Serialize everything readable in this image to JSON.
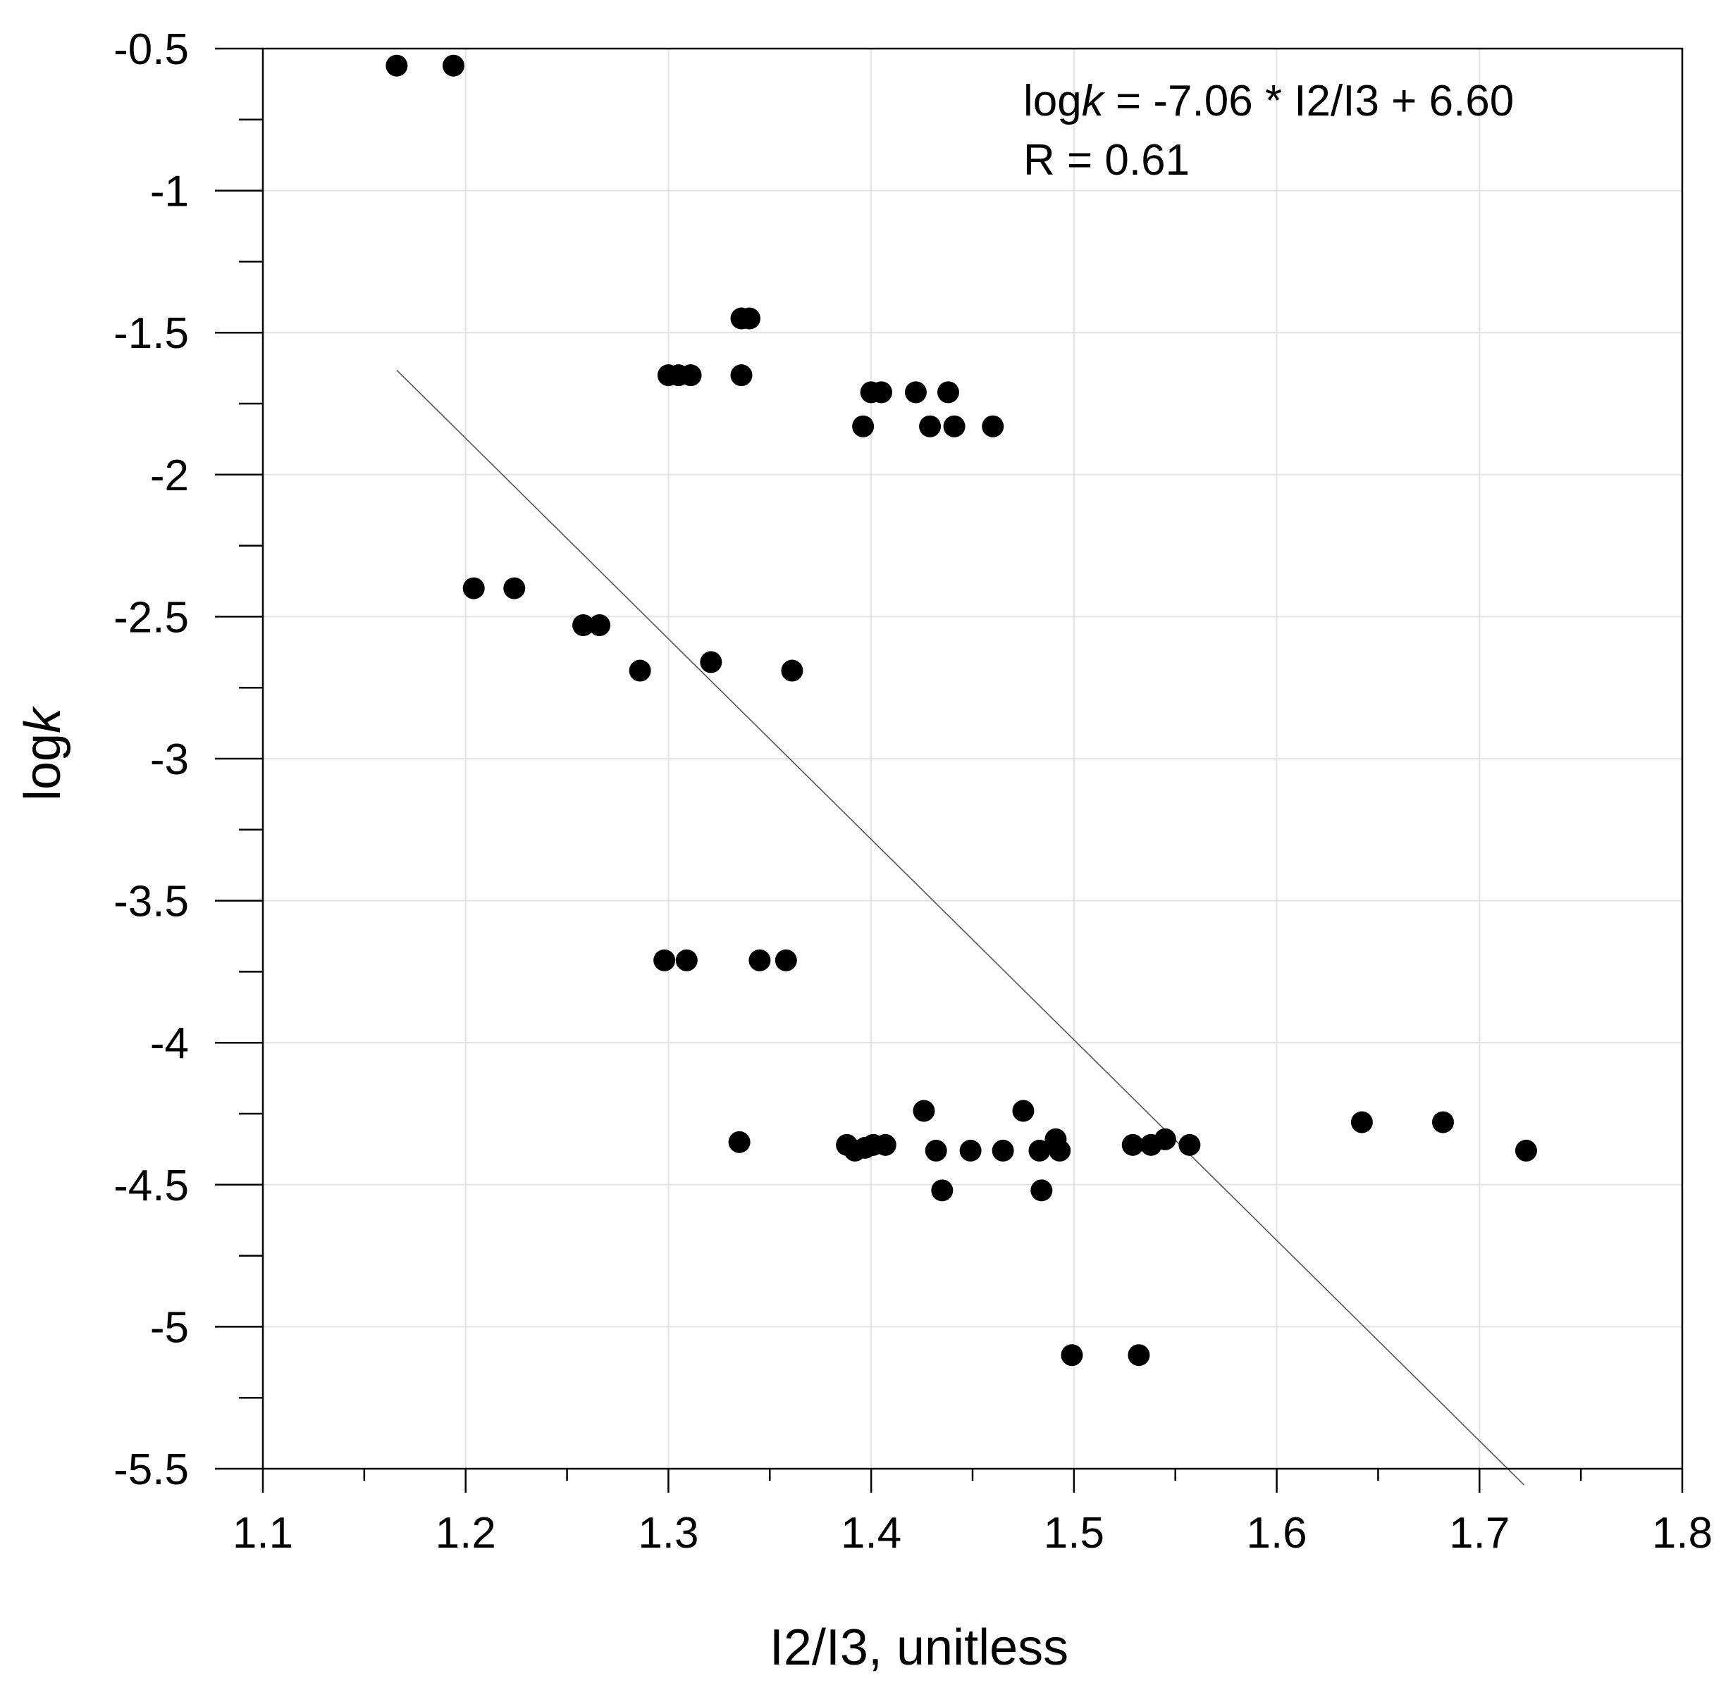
{
  "chart_data": {
    "type": "scatter",
    "title": "",
    "xlabel": "I2/I3, unitless",
    "ylabel_prefix": "log",
    "ylabel_italic": "k",
    "xlim": [
      1.1,
      1.8
    ],
    "ylim": [
      -5.5,
      -0.5
    ],
    "xticks": [
      1.1,
      1.2,
      1.3,
      1.4,
      1.5,
      1.6,
      1.7,
      1.8
    ],
    "xtick_labels": [
      "1.1",
      "1.2",
      "1.3",
      "1.4",
      "1.5",
      "1.6",
      "1.7",
      "1.8"
    ],
    "yticks": [
      -0.5,
      -1,
      -1.5,
      -2,
      -2.5,
      -3,
      -3.5,
      -4,
      -4.5,
      -5,
      -5.5
    ],
    "ytick_labels": [
      "-0.5",
      "-1",
      "-1.5",
      "-2",
      "-2.5",
      "-3",
      "-3.5",
      "-4",
      "-4.5",
      "-5",
      "-5.5"
    ],
    "grid": true,
    "points": [
      {
        "x": 1.166,
        "y": -0.56
      },
      {
        "x": 1.194,
        "y": -0.56
      },
      {
        "x": 1.336,
        "y": -1.45
      },
      {
        "x": 1.34,
        "y": -1.45
      },
      {
        "x": 1.3,
        "y": -1.65
      },
      {
        "x": 1.305,
        "y": -1.65
      },
      {
        "x": 1.311,
        "y": -1.65
      },
      {
        "x": 1.336,
        "y": -1.65
      },
      {
        "x": 1.4,
        "y": -1.71
      },
      {
        "x": 1.405,
        "y": -1.71
      },
      {
        "x": 1.422,
        "y": -1.71
      },
      {
        "x": 1.438,
        "y": -1.71
      },
      {
        "x": 1.396,
        "y": -1.83
      },
      {
        "x": 1.429,
        "y": -1.83
      },
      {
        "x": 1.441,
        "y": -1.83
      },
      {
        "x": 1.46,
        "y": -1.83
      },
      {
        "x": 1.204,
        "y": -2.4
      },
      {
        "x": 1.224,
        "y": -2.4
      },
      {
        "x": 1.258,
        "y": -2.53
      },
      {
        "x": 1.266,
        "y": -2.53
      },
      {
        "x": 1.286,
        "y": -2.69
      },
      {
        "x": 1.321,
        "y": -2.66
      },
      {
        "x": 1.361,
        "y": -2.69
      },
      {
        "x": 1.298,
        "y": -3.71
      },
      {
        "x": 1.309,
        "y": -3.71
      },
      {
        "x": 1.345,
        "y": -3.71
      },
      {
        "x": 1.358,
        "y": -3.71
      },
      {
        "x": 1.335,
        "y": -4.35
      },
      {
        "x": 1.388,
        "y": -4.36
      },
      {
        "x": 1.392,
        "y": -4.38
      },
      {
        "x": 1.397,
        "y": -4.37
      },
      {
        "x": 1.401,
        "y": -4.36
      },
      {
        "x": 1.407,
        "y": -4.36
      },
      {
        "x": 1.426,
        "y": -4.24
      },
      {
        "x": 1.432,
        "y": -4.38
      },
      {
        "x": 1.435,
        "y": -4.52
      },
      {
        "x": 1.449,
        "y": -4.38
      },
      {
        "x": 1.465,
        "y": -4.38
      },
      {
        "x": 1.475,
        "y": -4.24
      },
      {
        "x": 1.483,
        "y": -4.38
      },
      {
        "x": 1.484,
        "y": -4.52
      },
      {
        "x": 1.491,
        "y": -4.34
      },
      {
        "x": 1.493,
        "y": -4.38
      },
      {
        "x": 1.499,
        "y": -5.1
      },
      {
        "x": 1.532,
        "y": -5.1
      },
      {
        "x": 1.529,
        "y": -4.36
      },
      {
        "x": 1.538,
        "y": -4.36
      },
      {
        "x": 1.545,
        "y": -4.34
      },
      {
        "x": 1.557,
        "y": -4.36
      },
      {
        "x": 1.642,
        "y": -4.28
      },
      {
        "x": 1.682,
        "y": -4.28
      },
      {
        "x": 1.723,
        "y": -4.38
      }
    ],
    "fit_line": {
      "slope": -7.06,
      "intercept": 6.6,
      "x_range": [
        1.166,
        1.722
      ]
    },
    "annotations": {
      "equation_prefix": "log",
      "equation_italic": "k",
      "equation_suffix": " = -7.06 * I2/I3 + 6.60",
      "r_value": "R = 0.61"
    }
  }
}
